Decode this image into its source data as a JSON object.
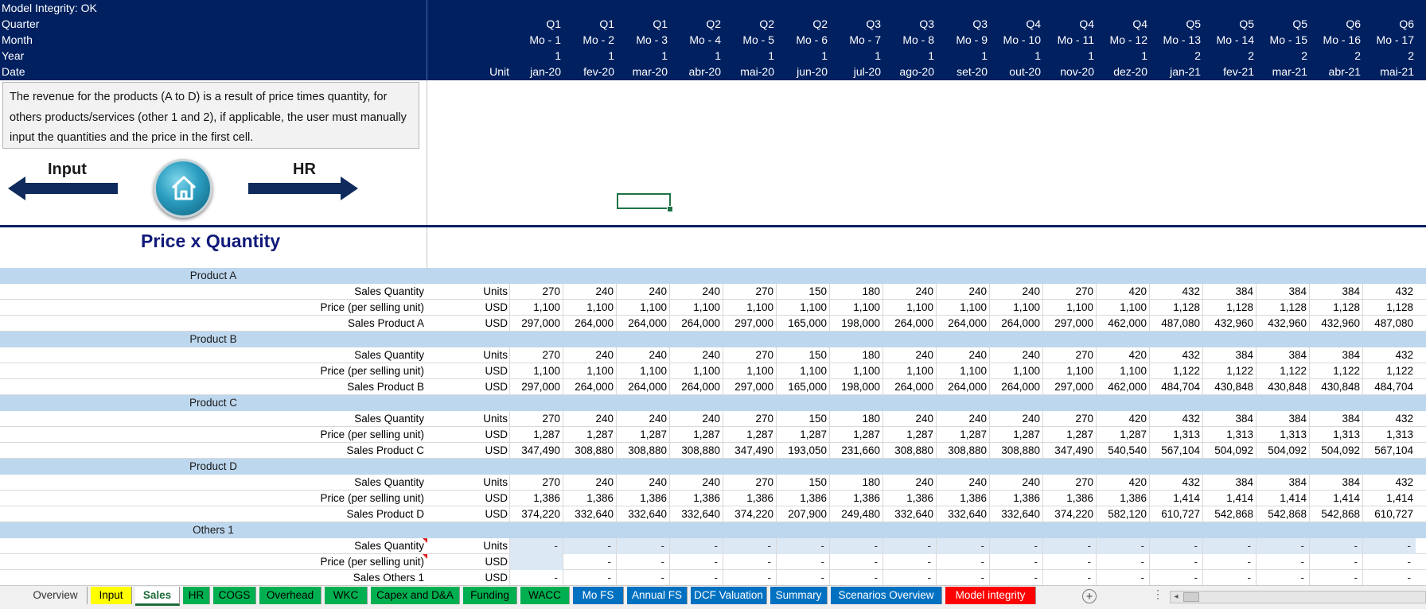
{
  "header": {
    "integrity": "Model Integrity: OK",
    "labels": [
      "Quarter",
      "Month",
      "Year",
      "Date"
    ],
    "unit_label": "Unit",
    "quarters": [
      "Q1",
      "Q1",
      "Q1",
      "Q2",
      "Q2",
      "Q2",
      "Q3",
      "Q3",
      "Q3",
      "Q4",
      "Q4",
      "Q4",
      "Q5",
      "Q5",
      "Q5",
      "Q6",
      "Q6"
    ],
    "months": [
      "Mo - 1",
      "Mo - 2",
      "Mo - 3",
      "Mo - 4",
      "Mo - 5",
      "Mo - 6",
      "Mo - 7",
      "Mo - 8",
      "Mo - 9",
      "Mo - 10",
      "Mo - 11",
      "Mo - 12",
      "Mo - 13",
      "Mo - 14",
      "Mo - 15",
      "Mo - 16",
      "Mo - 17"
    ],
    "years": [
      "1",
      "1",
      "1",
      "1",
      "1",
      "1",
      "1",
      "1",
      "1",
      "1",
      "1",
      "1",
      "2",
      "2",
      "2",
      "2",
      "2"
    ],
    "dates": [
      "jan-20",
      "fev-20",
      "mar-20",
      "abr-20",
      "mai-20",
      "jun-20",
      "jul-20",
      "ago-20",
      "set-20",
      "out-20",
      "nov-20",
      "dez-20",
      "jan-21",
      "fev-21",
      "mar-21",
      "abr-21",
      "mai-21"
    ]
  },
  "info_text": "The revenue for the products (A to D) is a result of price times quantity, for others  products/services (other 1 and 2), if applicable, the user must manually input the quantities and the price in the first cell.",
  "nav": {
    "left_label": "Input",
    "right_label": "HR"
  },
  "section_title": "Price x Quantity",
  "groups": [
    {
      "name": "Product A",
      "rows": [
        {
          "label": "Sales Quantity",
          "unit": "Units",
          "values": [
            "270",
            "240",
            "240",
            "240",
            "270",
            "150",
            "180",
            "240",
            "240",
            "240",
            "270",
            "420",
            "432",
            "384",
            "384",
            "384",
            "432"
          ]
        },
        {
          "label": "Price (per selling unit)",
          "unit": "USD",
          "values": [
            "1,100",
            "1,100",
            "1,100",
            "1,100",
            "1,100",
            "1,100",
            "1,100",
            "1,100",
            "1,100",
            "1,100",
            "1,100",
            "1,100",
            "1,128",
            "1,128",
            "1,128",
            "1,128",
            "1,128"
          ]
        },
        {
          "label": "Sales Product A",
          "unit": "USD",
          "values": [
            "297,000",
            "264,000",
            "264,000",
            "264,000",
            "297,000",
            "165,000",
            "198,000",
            "264,000",
            "264,000",
            "264,000",
            "297,000",
            "462,000",
            "487,080",
            "432,960",
            "432,960",
            "432,960",
            "487,080"
          ]
        }
      ]
    },
    {
      "name": "Product B",
      "rows": [
        {
          "label": "Sales Quantity",
          "unit": "Units",
          "values": [
            "270",
            "240",
            "240",
            "240",
            "270",
            "150",
            "180",
            "240",
            "240",
            "240",
            "270",
            "420",
            "432",
            "384",
            "384",
            "384",
            "432"
          ]
        },
        {
          "label": "Price (per selling unit)",
          "unit": "USD",
          "values": [
            "1,100",
            "1,100",
            "1,100",
            "1,100",
            "1,100",
            "1,100",
            "1,100",
            "1,100",
            "1,100",
            "1,100",
            "1,100",
            "1,100",
            "1,122",
            "1,122",
            "1,122",
            "1,122",
            "1,122"
          ]
        },
        {
          "label": "Sales Product B",
          "unit": "USD",
          "values": [
            "297,000",
            "264,000",
            "264,000",
            "264,000",
            "297,000",
            "165,000",
            "198,000",
            "264,000",
            "264,000",
            "264,000",
            "297,000",
            "462,000",
            "484,704",
            "430,848",
            "430,848",
            "430,848",
            "484,704"
          ]
        }
      ]
    },
    {
      "name": "Product C",
      "rows": [
        {
          "label": "Sales Quantity",
          "unit": "Units",
          "values": [
            "270",
            "240",
            "240",
            "240",
            "270",
            "150",
            "180",
            "240",
            "240",
            "240",
            "270",
            "420",
            "432",
            "384",
            "384",
            "384",
            "432"
          ]
        },
        {
          "label": "Price (per selling unit)",
          "unit": "USD",
          "values": [
            "1,287",
            "1,287",
            "1,287",
            "1,287",
            "1,287",
            "1,287",
            "1,287",
            "1,287",
            "1,287",
            "1,287",
            "1,287",
            "1,287",
            "1,313",
            "1,313",
            "1,313",
            "1,313",
            "1,313"
          ]
        },
        {
          "label": "Sales Product C",
          "unit": "USD",
          "values": [
            "347,490",
            "308,880",
            "308,880",
            "308,880",
            "347,490",
            "193,050",
            "231,660",
            "308,880",
            "308,880",
            "308,880",
            "347,490",
            "540,540",
            "567,104",
            "504,092",
            "504,092",
            "504,092",
            "567,104"
          ]
        }
      ]
    },
    {
      "name": "Product D",
      "rows": [
        {
          "label": "Sales Quantity",
          "unit": "Units",
          "values": [
            "270",
            "240",
            "240",
            "240",
            "270",
            "150",
            "180",
            "240",
            "240",
            "240",
            "270",
            "420",
            "432",
            "384",
            "384",
            "384",
            "432"
          ]
        },
        {
          "label": "Price (per selling unit)",
          "unit": "USD",
          "values": [
            "1,386",
            "1,386",
            "1,386",
            "1,386",
            "1,386",
            "1,386",
            "1,386",
            "1,386",
            "1,386",
            "1,386",
            "1,386",
            "1,386",
            "1,414",
            "1,414",
            "1,414",
            "1,414",
            "1,414"
          ]
        },
        {
          "label": "Sales Product D",
          "unit": "USD",
          "values": [
            "374,220",
            "332,640",
            "332,640",
            "332,640",
            "374,220",
            "207,900",
            "249,480",
            "332,640",
            "332,640",
            "332,640",
            "374,220",
            "582,120",
            "610,727",
            "542,868",
            "542,868",
            "542,868",
            "610,727"
          ]
        }
      ]
    },
    {
      "name": "Others 1",
      "rows": [
        {
          "label": "Sales Quantity",
          "unit": "Units",
          "input": true,
          "note": true,
          "values": [
            "-",
            "-",
            "-",
            "-",
            "-",
            "-",
            "-",
            "-",
            "-",
            "-",
            "-",
            "-",
            "-",
            "-",
            "-",
            "-",
            "-"
          ]
        },
        {
          "label": "Price (per selling unit)",
          "unit": "USD",
          "input_first": true,
          "note": true,
          "values": [
            "",
            "-",
            "-",
            "-",
            "-",
            "-",
            "-",
            "-",
            "-",
            "-",
            "-",
            "-",
            "-",
            "-",
            "-",
            "-",
            "-"
          ]
        },
        {
          "label": "Sales Others 1",
          "unit": "USD",
          "values": [
            "-",
            "-",
            "-",
            "-",
            "-",
            "-",
            "-",
            "-",
            "-",
            "-",
            "-",
            "-",
            "-",
            "-",
            "-",
            "-",
            "-"
          ]
        }
      ]
    }
  ],
  "sheet_tabs": [
    {
      "label": "Overview",
      "bg": "#f0f0f0",
      "color": "#333333"
    },
    {
      "label": "Input",
      "bg": "#ffff00",
      "color": "#000000"
    },
    {
      "label": "Sales",
      "bg": "#ffffff",
      "color": "#1e6b3a",
      "active": true
    },
    {
      "label": "HR",
      "bg": "#00b050",
      "color": "#000000"
    },
    {
      "label": "COGS",
      "bg": "#00b050",
      "color": "#000000"
    },
    {
      "label": "Overhead",
      "bg": "#00b050",
      "color": "#000000"
    },
    {
      "label": "WKC",
      "bg": "#00b050",
      "color": "#000000"
    },
    {
      "label": "Capex and D&A",
      "bg": "#00b050",
      "color": "#000000"
    },
    {
      "label": "Funding",
      "bg": "#00b050",
      "color": "#000000"
    },
    {
      "label": "WACC",
      "bg": "#00b050",
      "color": "#000000"
    },
    {
      "label": "Mo FS",
      "bg": "#0070c0",
      "color": "#ffffff"
    },
    {
      "label": "Annual FS",
      "bg": "#0070c0",
      "color": "#ffffff"
    },
    {
      "label": "DCF Valuation",
      "bg": "#0070c0",
      "color": "#ffffff"
    },
    {
      "label": "Summary",
      "bg": "#0070c0",
      "color": "#ffffff"
    },
    {
      "label": "Scenarios Overview",
      "bg": "#0070c0",
      "color": "#ffffff"
    },
    {
      "label": "Model integrity",
      "bg": "#ff0000",
      "color": "#ffffff"
    }
  ],
  "icons": {
    "add_sheet": "+",
    "more": "⋮",
    "scroll_left": "◂"
  }
}
